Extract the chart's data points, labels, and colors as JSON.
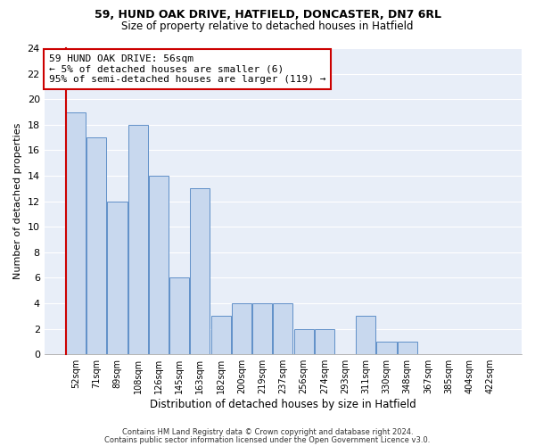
{
  "title1": "59, HUND OAK DRIVE, HATFIELD, DONCASTER, DN7 6RL",
  "title2": "Size of property relative to detached houses in Hatfield",
  "xlabel": "Distribution of detached houses by size in Hatfield",
  "ylabel": "Number of detached properties",
  "bar_labels": [
    "52sqm",
    "71sqm",
    "89sqm",
    "108sqm",
    "126sqm",
    "145sqm",
    "163sqm",
    "182sqm",
    "200sqm",
    "219sqm",
    "237sqm",
    "256sqm",
    "274sqm",
    "293sqm",
    "311sqm",
    "330sqm",
    "348sqm",
    "367sqm",
    "385sqm",
    "404sqm",
    "422sqm"
  ],
  "bar_values": [
    19,
    17,
    12,
    18,
    14,
    6,
    13,
    3,
    4,
    4,
    4,
    2,
    2,
    0,
    3,
    1,
    1,
    0,
    0,
    0,
    0
  ],
  "bar_color": "#c8d8ee",
  "bar_edge_color": "#6090c8",
  "ylim": [
    0,
    24
  ],
  "yticks": [
    0,
    2,
    4,
    6,
    8,
    10,
    12,
    14,
    16,
    18,
    20,
    22,
    24
  ],
  "annotation_title": "59 HUND OAK DRIVE: 56sqm",
  "annotation_line1": "← 5% of detached houses are smaller (6)",
  "annotation_line2": "95% of semi-detached houses are larger (119) →",
  "annotation_box_edge": "#cc0000",
  "footer1": "Contains HM Land Registry data © Crown copyright and database right 2024.",
  "footer2": "Contains public sector information licensed under the Open Government Licence v3.0.",
  "bg_color": "#ffffff",
  "plot_bg_color": "#e8eef8",
  "grid_color": "#ffffff"
}
